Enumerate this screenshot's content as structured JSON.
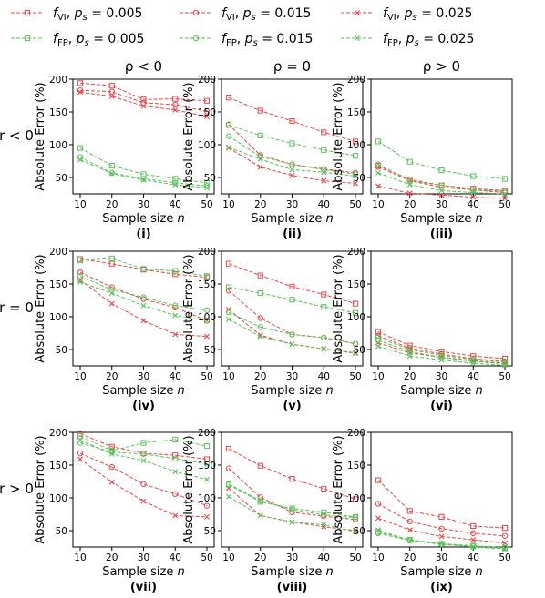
{
  "legend": [
    {
      "name": "f̂VI, ps = 0.005",
      "series": 0
    },
    {
      "name": "f̂VI, ps = 0.015",
      "series": 1
    },
    {
      "name": "f̂VI, ps = 0.025",
      "series": 2
    },
    {
      "name": "f̂FP, ps = 0.005",
      "series": 3
    },
    {
      "name": "f̂FP, ps = 0.015",
      "series": 4
    },
    {
      "name": "f̂FP, ps = 0.025",
      "series": 5
    }
  ],
  "legend_parts": [
    {
      "hat": "f",
      "sub": "VI",
      "ps": "0.005"
    },
    {
      "hat": "f",
      "sub": "VI",
      "ps": "0.015"
    },
    {
      "hat": "f",
      "sub": "VI",
      "ps": "0.025"
    },
    {
      "hat": "f",
      "sub": "FP",
      "ps": "0.005"
    },
    {
      "hat": "f",
      "sub": "FP",
      "ps": "0.015"
    },
    {
      "hat": "f",
      "sub": "FP",
      "ps": "0.025"
    }
  ],
  "series_styles": [
    {
      "color": "#e8474a",
      "marker": "square"
    },
    {
      "color": "#e8474a",
      "marker": "circle"
    },
    {
      "color": "#e8474a",
      "marker": "x"
    },
    {
      "color": "#5cc25c",
      "marker": "square"
    },
    {
      "color": "#5cc25c",
      "marker": "circle"
    },
    {
      "color": "#5cc25c",
      "marker": "x"
    }
  ],
  "column_titles": [
    "ρ < 0",
    "ρ = 0",
    "ρ > 0"
  ],
  "row_titles": [
    "r < 0",
    "r = 0",
    "r > 0"
  ],
  "chart_data": {
    "type": "line",
    "layout": "3x3 grid",
    "x": [
      10,
      20,
      30,
      40,
      50
    ],
    "xlabel": "Sample size n",
    "ylabel": "Absolute Error (%)",
    "ylim": [
      25,
      200
    ],
    "yticks": [
      50,
      100,
      150,
      200
    ],
    "grid": false,
    "legend_position": "top",
    "panels": [
      {
        "label": "(i)",
        "series": [
          [
            194,
            190,
            169,
            170,
            167
          ],
          [
            183,
            181,
            164,
            161,
            151
          ],
          [
            180,
            174,
            159,
            153,
            143
          ],
          [
            95,
            68,
            55,
            48,
            42
          ],
          [
            81,
            57,
            48,
            42,
            37
          ],
          [
            77,
            56,
            46,
            39,
            34
          ]
        ]
      },
      {
        "label": "(ii)",
        "series": [
          [
            172,
            152,
            136,
            119,
            105
          ],
          [
            131,
            84,
            70,
            63,
            57
          ],
          [
            95,
            66,
            53,
            45,
            41
          ],
          [
            130,
            114,
            102,
            92,
            83
          ],
          [
            113,
            82,
            70,
            62,
            55
          ],
          [
            96,
            78,
            62,
            58,
            52
          ]
        ]
      },
      {
        "label": "(iii)",
        "series": [
          [
            68,
            47,
            38,
            33,
            30
          ],
          [
            66,
            45,
            35,
            31,
            27
          ],
          [
            37,
            26,
            23,
            20,
            18
          ],
          [
            105,
            74,
            61,
            52,
            48
          ],
          [
            70,
            45,
            38,
            31,
            29
          ],
          [
            57,
            39,
            30,
            27,
            25
          ]
        ]
      },
      {
        "label": "(iv)",
        "series": [
          [
            188,
            181,
            172,
            165,
            160
          ],
          [
            168,
            145,
            127,
            114,
            94
          ],
          [
            156,
            120,
            94,
            73,
            70
          ],
          [
            186,
            189,
            173,
            170,
            162
          ],
          [
            162,
            141,
            130,
            117,
            110
          ],
          [
            153,
            136,
            117,
            102,
            94
          ]
        ]
      },
      {
        "label": "(v)",
        "series": [
          [
            181,
            163,
            146,
            134,
            120
          ],
          [
            140,
            98,
            73,
            68,
            59
          ],
          [
            111,
            72,
            58,
            51,
            45
          ],
          [
            145,
            136,
            126,
            115,
            106
          ],
          [
            107,
            84,
            73,
            68,
            59
          ],
          [
            96,
            70,
            58,
            51,
            44
          ]
        ]
      },
      {
        "label": "(vi)",
        "series": [
          [
            77,
            56,
            47,
            40,
            36
          ],
          [
            71,
            52,
            43,
            36,
            32
          ],
          [
            60,
            45,
            38,
            33,
            29
          ],
          [
            68,
            50,
            41,
            35,
            31
          ],
          [
            64,
            47,
            38,
            32,
            28
          ],
          [
            55,
            40,
            34,
            29,
            26
          ]
        ]
      },
      {
        "label": "(vii)",
        "series": [
          [
            198,
            178,
            168,
            165,
            159
          ],
          [
            168,
            147,
            121,
            106,
            88
          ],
          [
            159,
            124,
            95,
            73,
            71
          ],
          [
            194,
            172,
            184,
            189,
            179
          ],
          [
            184,
            170,
            167,
            160,
            152
          ],
          [
            188,
            167,
            157,
            140,
            128
          ]
        ]
      },
      {
        "label": "(viii)",
        "series": [
          [
            175,
            149,
            129,
            114,
            98
          ],
          [
            145,
            101,
            78,
            72,
            67
          ],
          [
            115,
            73,
            63,
            56,
            50
          ],
          [
            120,
            94,
            84,
            78,
            71
          ],
          [
            121,
            96,
            82,
            74,
            70
          ],
          [
            102,
            73,
            63,
            59,
            48
          ]
        ]
      },
      {
        "label": "(ix)",
        "series": [
          [
            127,
            80,
            71,
            57,
            54
          ],
          [
            91,
            64,
            53,
            46,
            42
          ],
          [
            69,
            51,
            41,
            36,
            31
          ],
          [
            48,
            36,
            30,
            27,
            24
          ],
          [
            46,
            35,
            29,
            26,
            23
          ],
          [
            51,
            35,
            30,
            25,
            22
          ]
        ]
      }
    ]
  }
}
